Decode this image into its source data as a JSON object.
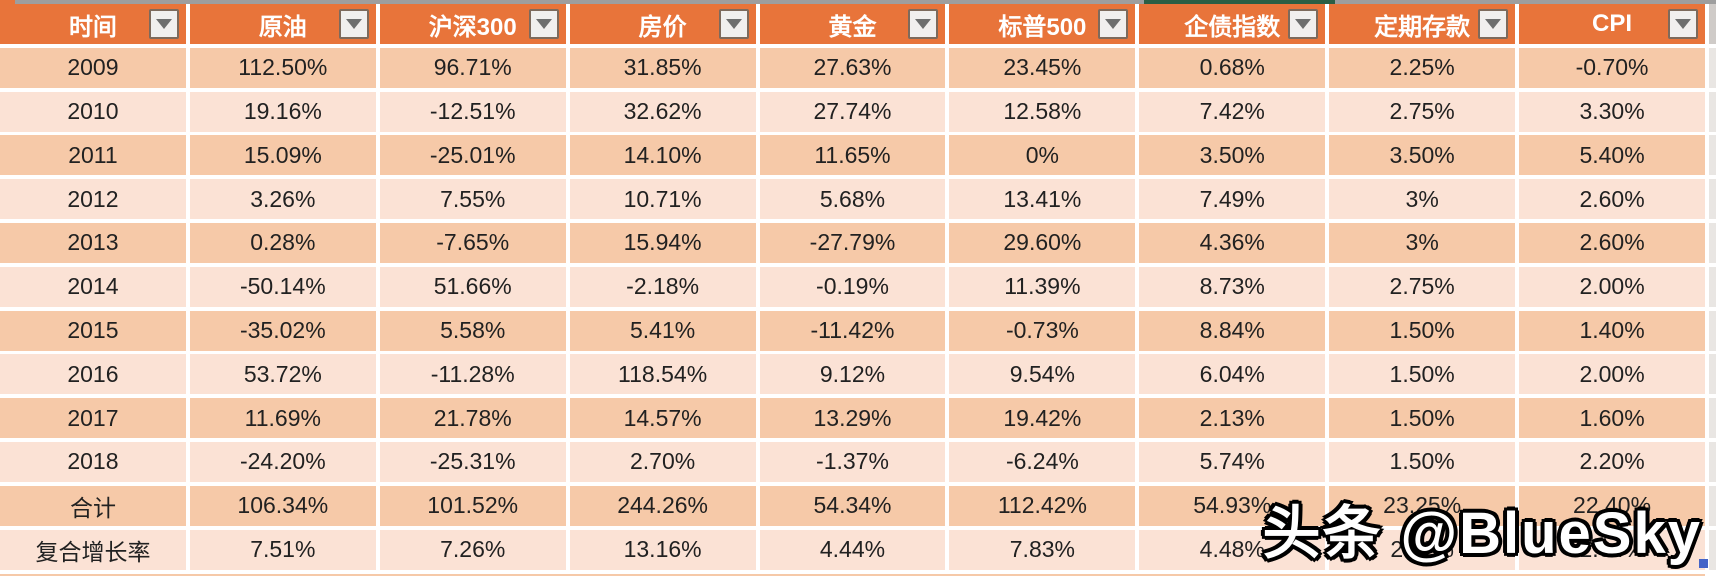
{
  "table": {
    "columns": [
      "时间",
      "原油",
      "沪深300",
      "房价",
      "黄金",
      "标普500",
      "企债指数",
      "定期存款",
      "CPI"
    ],
    "rows": [
      {
        "label": "2009",
        "values": [
          "112.50%",
          "96.71%",
          "31.85%",
          "27.63%",
          "23.45%",
          "0.68%",
          "2.25%",
          "-0.70%"
        ]
      },
      {
        "label": "2010",
        "values": [
          "19.16%",
          "-12.51%",
          "32.62%",
          "27.74%",
          "12.58%",
          "7.42%",
          "2.75%",
          "3.30%"
        ]
      },
      {
        "label": "2011",
        "values": [
          "15.09%",
          "-25.01%",
          "14.10%",
          "11.65%",
          "0%",
          "3.50%",
          "3.50%",
          "5.40%"
        ]
      },
      {
        "label": "2012",
        "values": [
          "3.26%",
          "7.55%",
          "10.71%",
          "5.68%",
          "13.41%",
          "7.49%",
          "3%",
          "2.60%"
        ]
      },
      {
        "label": "2013",
        "values": [
          "0.28%",
          "-7.65%",
          "15.94%",
          "-27.79%",
          "29.60%",
          "4.36%",
          "3%",
          "2.60%"
        ]
      },
      {
        "label": "2014",
        "values": [
          "-50.14%",
          "51.66%",
          "-2.18%",
          "-0.19%",
          "11.39%",
          "8.73%",
          "2.75%",
          "2.00%"
        ]
      },
      {
        "label": "2015",
        "values": [
          "-35.02%",
          "5.58%",
          "5.41%",
          "-11.42%",
          "-0.73%",
          "8.84%",
          "1.50%",
          "1.40%"
        ]
      },
      {
        "label": "2016",
        "values": [
          "53.72%",
          "-11.28%",
          "118.54%",
          "9.12%",
          "9.54%",
          "6.04%",
          "1.50%",
          "2.00%"
        ]
      },
      {
        "label": "2017",
        "values": [
          "11.69%",
          "21.78%",
          "14.57%",
          "13.29%",
          "19.42%",
          "2.13%",
          "1.50%",
          "1.60%"
        ]
      },
      {
        "label": "2018",
        "values": [
          "-24.20%",
          "-25.31%",
          "2.70%",
          "-1.37%",
          "-6.24%",
          "5.74%",
          "1.50%",
          "2.20%"
        ]
      },
      {
        "label": "合计",
        "values": [
          "106.34%",
          "101.52%",
          "244.26%",
          "54.34%",
          "112.42%",
          "54.93%",
          "23.25%",
          "22.40%"
        ]
      },
      {
        "label": "复合增长率",
        "values": [
          "7.51%",
          "7.26%",
          "13.16%",
          "4.44%",
          "7.83%",
          "4.48%",
          "2.11%",
          "2.04%"
        ]
      }
    ]
  },
  "watermark": "头条 @BlueSky",
  "colors": {
    "header_bg": "#E8743A",
    "band_dark": "#F6C9A8",
    "band_light": "#FBE2D5",
    "cell_text": "#212121",
    "top_strip_gray": "#9E9E9E",
    "selection_indicator_green": "#2B5E44",
    "fill_handle_blue": "#4464C8",
    "watermark_fill": "#FFFFFF",
    "watermark_outline": "#000000"
  }
}
